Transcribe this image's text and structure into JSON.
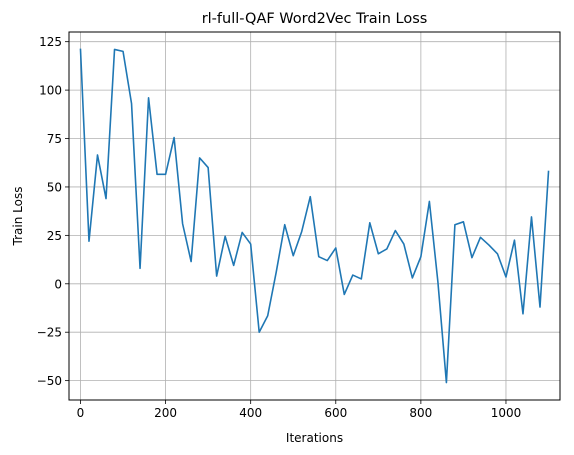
{
  "chart_data": {
    "type": "line",
    "title": "rl-full-QAF Word2Vec Train Loss",
    "xlabel": "Iterations",
    "ylabel": "Train Loss",
    "xlim": [
      -27,
      1127
    ],
    "ylim": [
      -60,
      130
    ],
    "xticks": [
      0,
      200,
      400,
      600,
      800,
      1000
    ],
    "yticks": [
      -50,
      -25,
      0,
      25,
      50,
      75,
      100,
      125
    ],
    "grid": true,
    "line_color": "#1f77b4",
    "series": [
      {
        "x": [
          0,
          20,
          40,
          60,
          80,
          100,
          120,
          140,
          160,
          180,
          200,
          220,
          240,
          260,
          280,
          300,
          320,
          340,
          360,
          380,
          400,
          420,
          440,
          460,
          480,
          500,
          520,
          540,
          560,
          580,
          600,
          620,
          640,
          660,
          680,
          700,
          720,
          740,
          760,
          780,
          800,
          820,
          840,
          860,
          880,
          900,
          920,
          940,
          960,
          980,
          1000,
          1020,
          1040,
          1060,
          1080,
          1100
        ],
        "y": [
          121,
          22,
          66.5,
          44,
          121,
          120,
          93,
          8,
          96,
          56.5,
          56.5,
          75.5,
          31,
          11.5,
          65,
          60,
          4,
          24.5,
          9.5,
          26.5,
          20.5,
          -25,
          -16.5,
          6,
          30.5,
          14.5,
          27,
          45,
          14,
          12,
          18.5,
          -5.5,
          4.5,
          2.5,
          31.5,
          15.5,
          18,
          27.5,
          20.5,
          3,
          14,
          42.5,
          1,
          -51,
          30.5,
          32,
          13.5,
          24,
          20,
          15.5,
          3.5,
          22.5,
          -15.5,
          34.5,
          -12,
          58
        ]
      }
    ]
  }
}
